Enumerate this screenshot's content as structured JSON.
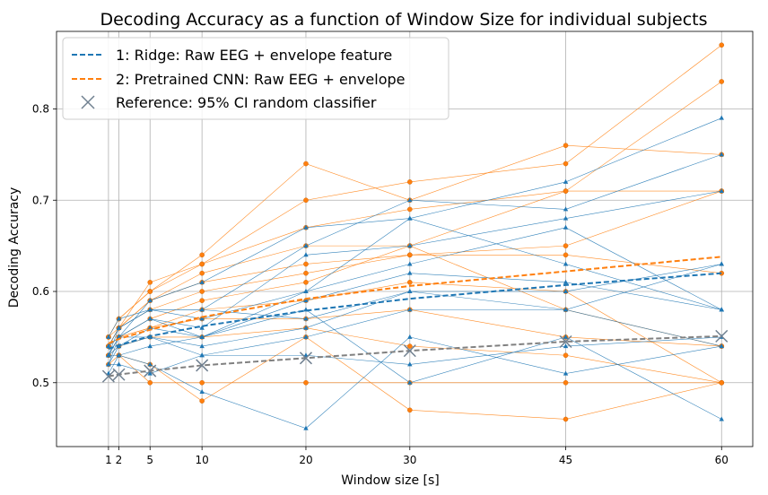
{
  "chart_data": {
    "type": "line",
    "title": "Decoding Accuracy as a function of Window Size for individual subjects",
    "xlabel": "Window size [s]",
    "ylabel": "Decoding Accuracy",
    "x": [
      1,
      2,
      5,
      10,
      20,
      30,
      45,
      60
    ],
    "xticks": [
      "1",
      "2",
      "5",
      "10",
      "20",
      "30",
      "45",
      "60"
    ],
    "yticks": [
      "0.5",
      "0.6",
      "0.7",
      "0.8"
    ],
    "xlim": [
      -4,
      63
    ],
    "ylim": [
      0.43,
      0.885
    ],
    "grid": true,
    "legend_position": "upper-left",
    "colors": {
      "ridge": "#1f77b4",
      "cnn": "#ff7f0e",
      "reference": "#808080"
    },
    "legend": [
      "1: Ridge: Raw EEG + envelope feature",
      "2: Pretrained CNN: Raw EEG + envelope",
      "Reference: 95% CI random classifier"
    ],
    "mean_series": [
      {
        "name": "1: Ridge: Raw EEG + envelope feature",
        "values": [
          0.537,
          0.541,
          0.551,
          0.562,
          0.579,
          0.592,
          0.607,
          0.62
        ]
      },
      {
        "name": "2: Pretrained CNN: Raw EEG + envelope",
        "values": [
          0.543,
          0.548,
          0.558,
          0.572,
          0.592,
          0.606,
          0.622,
          0.638
        ]
      },
      {
        "name": "Reference: 95% CI random classifier",
        "values": [
          0.507,
          0.509,
          0.513,
          0.519,
          0.527,
          0.535,
          0.545,
          0.551
        ]
      }
    ],
    "ridge_subjects": [
      [
        0.53,
        0.55,
        0.59,
        0.61,
        0.67,
        0.68,
        0.72,
        0.79
      ],
      [
        0.53,
        0.56,
        0.58,
        0.58,
        0.65,
        0.7,
        0.69,
        0.75
      ],
      [
        0.54,
        0.55,
        0.57,
        0.56,
        0.64,
        0.65,
        0.68,
        0.71
      ],
      [
        0.53,
        0.54,
        0.56,
        0.55,
        0.6,
        0.63,
        0.67,
        0.58
      ],
      [
        0.52,
        0.55,
        0.57,
        0.55,
        0.59,
        0.62,
        0.61,
        0.58
      ],
      [
        0.54,
        0.56,
        0.58,
        0.58,
        0.57,
        0.6,
        0.58,
        0.63
      ],
      [
        0.53,
        0.55,
        0.55,
        0.54,
        0.56,
        0.6,
        0.6,
        0.63
      ],
      [
        0.52,
        0.54,
        0.55,
        0.53,
        0.55,
        0.58,
        0.58,
        0.54
      ],
      [
        0.51,
        0.53,
        0.52,
        0.49,
        0.45,
        0.55,
        0.51,
        0.54
      ],
      [
        0.53,
        0.53,
        0.54,
        0.55,
        0.58,
        0.5,
        0.55,
        0.46
      ],
      [
        0.52,
        0.52,
        0.51,
        0.53,
        0.53,
        0.52,
        0.54,
        0.55
      ],
      [
        0.55,
        0.57,
        0.58,
        0.57,
        0.6,
        0.68,
        0.63,
        0.58
      ]
    ],
    "cnn_subjects": [
      [
        0.55,
        0.57,
        0.6,
        0.64,
        0.74,
        0.7,
        0.76,
        0.75
      ],
      [
        0.54,
        0.56,
        0.61,
        0.63,
        0.7,
        0.72,
        0.74,
        0.87
      ],
      [
        0.55,
        0.57,
        0.6,
        0.63,
        0.67,
        0.69,
        0.71,
        0.83
      ],
      [
        0.54,
        0.56,
        0.59,
        0.62,
        0.65,
        0.65,
        0.71,
        0.71
      ],
      [
        0.54,
        0.56,
        0.59,
        0.61,
        0.63,
        0.64,
        0.65,
        0.71
      ],
      [
        0.55,
        0.56,
        0.58,
        0.6,
        0.62,
        0.64,
        0.64,
        0.62
      ],
      [
        0.54,
        0.55,
        0.57,
        0.59,
        0.61,
        0.65,
        0.58,
        0.54
      ],
      [
        0.54,
        0.55,
        0.56,
        0.58,
        0.59,
        0.61,
        0.6,
        0.5
      ],
      [
        0.53,
        0.55,
        0.56,
        0.57,
        0.57,
        0.58,
        0.55,
        0.54
      ],
      [
        0.53,
        0.54,
        0.55,
        0.55,
        0.56,
        0.54,
        0.53,
        0.5
      ],
      [
        0.53,
        0.53,
        0.52,
        0.48,
        0.55,
        0.47,
        0.46,
        0.5
      ],
      [
        0.52,
        0.53,
        0.5,
        0.5,
        0.5,
        0.5,
        0.5,
        0.5
      ]
    ]
  }
}
